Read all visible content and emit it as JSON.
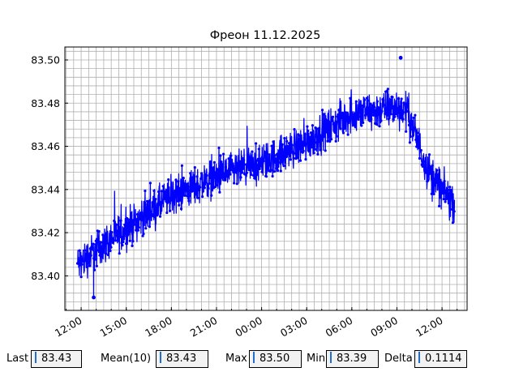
{
  "chart_data": {
    "type": "line",
    "title": "Фреон 11.12.2025",
    "xlabel": "",
    "ylabel": "",
    "series_color": "#0000ff",
    "x_start": "2025-12-11 11:45",
    "x_end": "2025-12-12 12:50",
    "xlim": [
      "2025-12-11 10:55",
      "2025-12-12 13:40"
    ],
    "ylim": [
      83.384,
      83.506
    ],
    "grid": true,
    "x_ticks": [
      {
        "label": "12:00",
        "value": "2025-12-11 12:00"
      },
      {
        "label": "15:00",
        "value": "2025-12-11 15:00"
      },
      {
        "label": "18:00",
        "value": "2025-12-11 18:00"
      },
      {
        "label": "21:00",
        "value": "2025-12-11 21:00"
      },
      {
        "label": "00:00",
        "value": "2025-12-12 00:00"
      },
      {
        "label": "03:00",
        "value": "2025-12-12 03:00"
      },
      {
        "label": "06:00",
        "value": "2025-12-12 06:00"
      },
      {
        "label": "09:00",
        "value": "2025-12-12 09:00"
      },
      {
        "label": "12:00",
        "value": "2025-12-12 12:00"
      }
    ],
    "y_ticks": [
      {
        "label": "83.40",
        "value": 83.4
      },
      {
        "label": "83.42",
        "value": 83.42
      },
      {
        "label": "83.44",
        "value": 83.44
      },
      {
        "label": "83.46",
        "value": 83.46
      },
      {
        "label": "83.48",
        "value": 83.48
      },
      {
        "label": "83.50",
        "value": 83.5
      }
    ],
    "trend": [
      {
        "x": "2025-12-11 11:45",
        "y": 83.405
      },
      {
        "x": "2025-12-11 13:00",
        "y": 83.412
      },
      {
        "x": "2025-12-11 15:00",
        "y": 83.422
      },
      {
        "x": "2025-12-11 18:00",
        "y": 83.437
      },
      {
        "x": "2025-12-11 21:00",
        "y": 83.446
      },
      {
        "x": "2025-12-12 00:00",
        "y": 83.452
      },
      {
        "x": "2025-12-12 03:00",
        "y": 83.462
      },
      {
        "x": "2025-12-12 06:00",
        "y": 83.475
      },
      {
        "x": "2025-12-12 09:00",
        "y": 83.478
      },
      {
        "x": "2025-12-12 09:40",
        "y": 83.477
      },
      {
        "x": "2025-12-12 11:00",
        "y": 83.45
      },
      {
        "x": "2025-12-12 12:00",
        "y": 83.44
      },
      {
        "x": "2025-12-12 12:50",
        "y": 83.433
      }
    ],
    "min_point": {
      "x": "2025-12-11 12:50",
      "y": 83.39
    },
    "max_point": {
      "x": "2025-12-12 09:15",
      "y": 83.501
    }
  },
  "stats": {
    "last": {
      "label": "Last",
      "value": "83.43"
    },
    "mean": {
      "label": "Mean(10)",
      "value": "83.43"
    },
    "max": {
      "label": "Max",
      "value": "83.50"
    },
    "min": {
      "label": "Min",
      "value": "83.39"
    },
    "delta": {
      "label": "Delta",
      "value": "0.1114"
    }
  }
}
